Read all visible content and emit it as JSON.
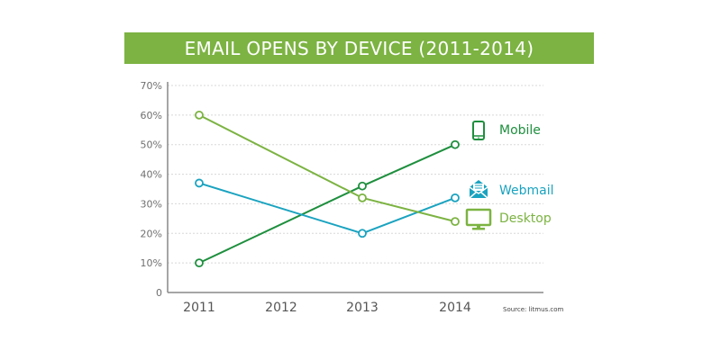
{
  "chart_data": {
    "type": "line",
    "title": "EMAIL OPENS BY DEVICE (2011-2014)",
    "xlabel": "",
    "ylabel": "",
    "x": [
      "2011",
      "2012",
      "2013",
      "2014"
    ],
    "ylim": [
      0,
      70
    ],
    "yticks": [
      0,
      10,
      20,
      30,
      40,
      50,
      60,
      70
    ],
    "ytick_labels": [
      "0",
      "10%",
      "20%",
      "30%",
      "40%",
      "50%",
      "60%",
      "70%"
    ],
    "grid": true,
    "legend_position": "right",
    "series": [
      {
        "name": "Mobile",
        "color": "#1e8f3e",
        "icon": "mobile-phone-icon",
        "points": [
          {
            "x": "2011",
            "y": 10
          },
          {
            "x": "2013",
            "y": 36
          },
          {
            "x": "2014",
            "y": 50
          }
        ]
      },
      {
        "name": "Webmail",
        "color": "#1aa3c0",
        "icon": "envelope-open-icon",
        "points": [
          {
            "x": "2011",
            "y": 37
          },
          {
            "x": "2013",
            "y": 20
          },
          {
            "x": "2014",
            "y": 32
          }
        ]
      },
      {
        "name": "Desktop",
        "color": "#7cb342",
        "icon": "desktop-monitor-icon",
        "points": [
          {
            "x": "2011",
            "y": 60
          },
          {
            "x": "2013",
            "y": 32
          },
          {
            "x": "2014",
            "y": 24
          }
        ]
      }
    ],
    "source": "Source: litmus.com"
  },
  "colors": {
    "title_bar": "#7cb342",
    "axis": "#888888",
    "grid": "#d8d8d8"
  }
}
